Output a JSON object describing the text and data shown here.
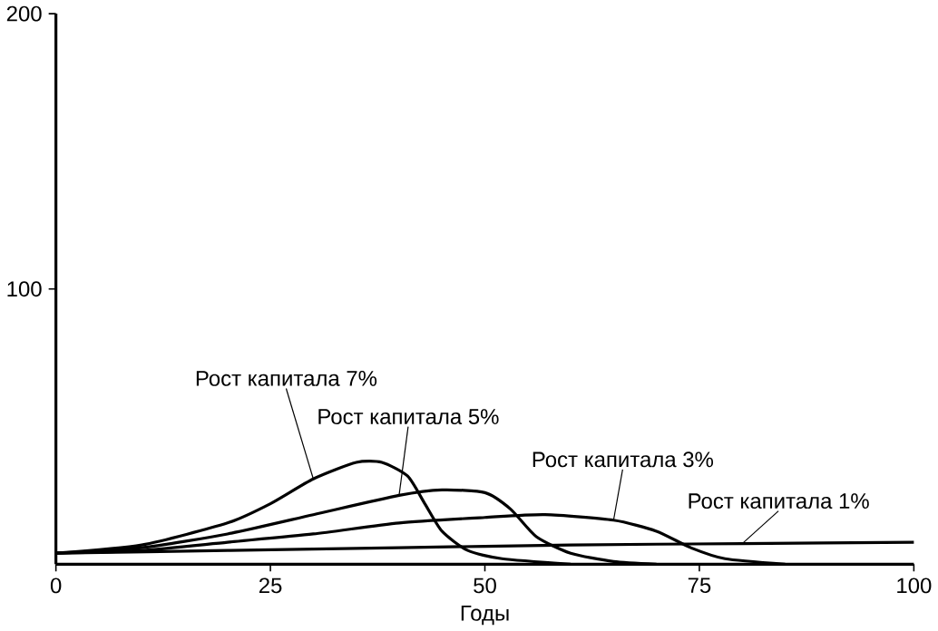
{
  "chart_data": {
    "type": "line",
    "xlabel": "Годы",
    "xlim": [
      0,
      100
    ],
    "ylim": [
      0,
      200
    ],
    "xticks": [
      0,
      25,
      50,
      75,
      100
    ],
    "yticks": [
      100,
      200
    ],
    "grid": false,
    "legend": false,
    "marker": "none",
    "line_style": "solid",
    "series": [
      {
        "name": "Рост капитала 7%",
        "color": "#000000",
        "x": [
          0,
          10,
          20,
          25,
          30,
          35,
          38,
          41,
          43,
          45,
          48,
          52,
          60
        ],
        "values": [
          4,
          7,
          15,
          22,
          31,
          37,
          37,
          32,
          22,
          12,
          5,
          2,
          0
        ]
      },
      {
        "name": "Рост капитала 5%",
        "color": "#000000",
        "x": [
          0,
          10,
          20,
          30,
          40,
          45,
          50,
          53,
          56,
          60,
          65,
          70
        ],
        "values": [
          4,
          6,
          11,
          18,
          25,
          27,
          26,
          20,
          10,
          4,
          1,
          0
        ]
      },
      {
        "name": "Рост капитала 3%",
        "color": "#000000",
        "x": [
          0,
          10,
          20,
          30,
          40,
          50,
          57,
          65,
          70,
          74,
          78,
          85
        ],
        "values": [
          4,
          5,
          8,
          11,
          15,
          17,
          18,
          16,
          12,
          6,
          2,
          0
        ]
      },
      {
        "name": "Рост капитала 1%",
        "color": "#000000",
        "x": [
          0,
          20,
          40,
          60,
          80,
          100
        ],
        "values": [
          4,
          5,
          6,
          7,
          7.5,
          8
        ]
      }
    ]
  }
}
